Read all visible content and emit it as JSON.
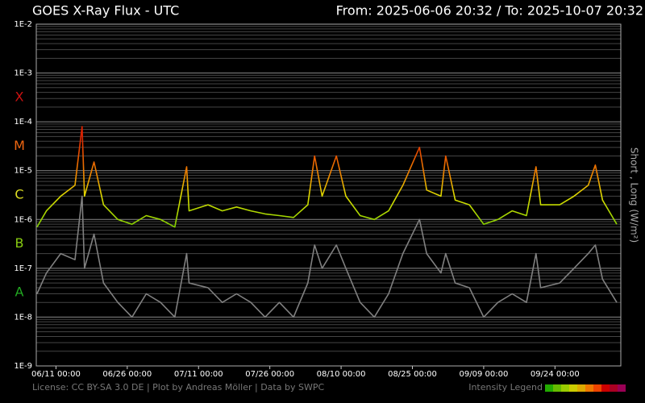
{
  "chart_data": {
    "type": "line",
    "title": "GOES X-Ray Flux - UTC",
    "range_text": "From: 2025-06-06 20:32  /  To: 2025-10-07 20:32",
    "ylabel_right": "Short , Long (W/m²)",
    "log_y": true,
    "grid": true,
    "minor_grid": true,
    "xlim": [
      "06/06 20:32",
      "10/07 20:32"
    ],
    "xticks": [
      "06/11 00:00",
      "06/26 00:00",
      "07/11 00:00",
      "07/26 00:00",
      "08/10 00:00",
      "08/25 00:00",
      "09/09 00:00",
      "09/24 00:00"
    ],
    "ylim": [
      1e-09,
      0.01
    ],
    "yticks": [
      {
        "value": 1e-09,
        "label": "1E-9"
      },
      {
        "value": 1e-08,
        "label": "1E-8"
      },
      {
        "value": 1e-07,
        "label": "1E-7"
      },
      {
        "value": 1e-06,
        "label": "1E-6"
      },
      {
        "value": 1e-05,
        "label": "1E-5"
      },
      {
        "value": 0.0001,
        "label": "1E-4"
      },
      {
        "value": 0.001,
        "label": "1E-3"
      },
      {
        "value": 0.01,
        "label": "1E-2"
      }
    ],
    "flare_classes": [
      {
        "label": "X",
        "value": 0.0001,
        "color": "#cc1111"
      },
      {
        "label": "M",
        "value": 1e-05,
        "color": "#ee6611"
      },
      {
        "label": "C",
        "value": 1e-06,
        "color": "#dddd22"
      },
      {
        "label": "B",
        "value": 1e-07,
        "color": "#88cc11"
      },
      {
        "label": "A",
        "value": 1e-08,
        "color": "#22aa22"
      }
    ],
    "x": [
      "06/07 00:00",
      "06/09 00:00",
      "06/12 00:00",
      "06/15 00:00",
      "06/16 12:00",
      "06/17 00:00",
      "06/19 00:00",
      "06/21 00:00",
      "06/24 00:00",
      "06/27 00:00",
      "06/30 00:00",
      "07/03 00:00",
      "07/06 00:00",
      "07/08 12:00",
      "07/09 00:00",
      "07/13 00:00",
      "07/16 00:00",
      "07/19 00:00",
      "07/22 00:00",
      "07/25 00:00",
      "07/28 00:00",
      "07/31 00:00",
      "08/03 00:00",
      "08/04 10:00",
      "08/06 00:00",
      "08/09 00:00",
      "08/11 00:00",
      "08/14 00:00",
      "08/17 00:00",
      "08/20 00:00",
      "08/23 00:00",
      "08/26 12:00",
      "08/28 00:00",
      "08/31 00:00",
      "09/01 00:00",
      "09/03 00:00",
      "09/06 00:00",
      "09/09 00:00",
      "09/12 00:00",
      "09/15 00:00",
      "09/18 00:00",
      "09/20 00:00",
      "09/21 00:00",
      "09/25 00:00",
      "09/28 00:00",
      "10/01 00:00",
      "10/02 12:00",
      "10/04 00:00",
      "10/07 00:00"
    ],
    "series": [
      {
        "color": "#808080",
        "values": [
          3e-08,
          8e-08,
          2e-07,
          1.5e-07,
          3e-06,
          1e-07,
          5e-07,
          5e-08,
          2e-08,
          1e-08,
          3e-08,
          2e-08,
          1e-08,
          2e-07,
          5e-08,
          4e-08,
          2e-08,
          3e-08,
          2e-08,
          1e-08,
          2e-08,
          1e-08,
          5e-08,
          3e-07,
          1e-07,
          3e-07,
          1e-07,
          2e-08,
          1e-08,
          3e-08,
          2e-07,
          1e-06,
          2e-07,
          8e-08,
          2e-07,
          5e-08,
          4e-08,
          1e-08,
          2e-08,
          3e-08,
          2e-08,
          2e-07,
          4e-08,
          5e-08,
          1e-07,
          2e-07,
          3e-07,
          6e-08,
          2e-08
        ]
      },
      {
        "color_scale": [
          {
            "value": 3e-07,
            "color": "#44bb00"
          },
          {
            "value": 1e-06,
            "color": "#99d400"
          },
          {
            "value": 3e-06,
            "color": "#dddd00"
          },
          {
            "value": 8e-06,
            "color": "#ee8800"
          },
          {
            "value": 5e-05,
            "color": "#dd2200"
          }
        ],
        "values": [
          7e-07,
          1.5e-06,
          3e-06,
          5e-06,
          8e-05,
          3e-06,
          1.5e-05,
          2e-06,
          1e-06,
          8e-07,
          1.2e-06,
          1e-06,
          7e-07,
          1.2e-05,
          1.5e-06,
          2e-06,
          1.5e-06,
          1.8e-06,
          1.5e-06,
          1.3e-06,
          1.2e-06,
          1.1e-06,
          2e-06,
          2e-05,
          3e-06,
          2e-05,
          3e-06,
          1.2e-06,
          1e-06,
          1.5e-06,
          5e-06,
          3e-05,
          4e-06,
          3e-06,
          2e-05,
          2.5e-06,
          2e-06,
          8e-07,
          1e-06,
          1.5e-06,
          1.2e-06,
          1.2e-05,
          2e-06,
          2e-06,
          3e-06,
          5e-06,
          1.3e-05,
          2.5e-06,
          8e-07
        ]
      }
    ],
    "footer": "License: CC BY-SA 3.0 DE | Plot by Andreas Möller | Data by SWPC",
    "intensity_legend": {
      "label": "Intensity Legend",
      "colors": [
        "#22aa00",
        "#66bb00",
        "#99cc00",
        "#cccc00",
        "#ddaa00",
        "#ee7700",
        "#ee4400",
        "#cc0000",
        "#aa0022",
        "#990055"
      ]
    }
  }
}
